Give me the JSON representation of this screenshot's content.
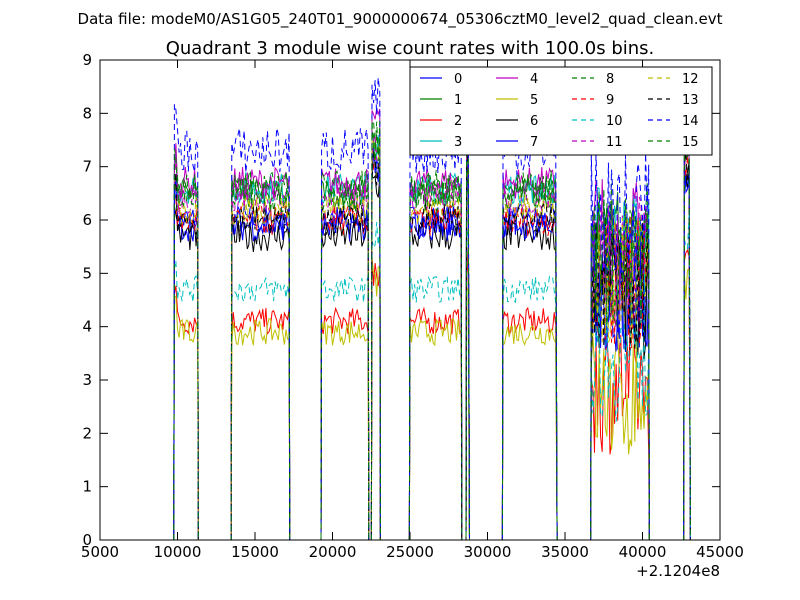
{
  "header": {
    "data_file": "Data file: modeM0/AS1G05_240T01_9000000674_05306cztM0_level2_quad_clean.evt"
  },
  "chart_data": {
    "type": "line",
    "title": "Quadrant 3 module wise count rates with 100.0s bins.",
    "xlabel": "",
    "ylabel": "",
    "x_offset_label": "+2.1204e8",
    "xlim": [
      5000,
      45000
    ],
    "ylim": [
      0,
      9
    ],
    "xticks": [
      5000,
      10000,
      15000,
      20000,
      25000,
      30000,
      35000,
      40000,
      45000
    ],
    "yticks": [
      0,
      1,
      2,
      3,
      4,
      5,
      6,
      7,
      8,
      9
    ],
    "legend_position": "top-right",
    "segments": [
      [
        9800,
        11300
      ],
      [
        13500,
        17200
      ],
      [
        19300,
        22300
      ],
      [
        22550,
        23050
      ],
      [
        25000,
        28300
      ],
      [
        28650,
        28800
      ],
      [
        31000,
        34450
      ],
      [
        36700,
        40400
      ],
      [
        42700,
        43050
      ]
    ],
    "series": [
      {
        "name": "0",
        "color": "#0000ff",
        "dash": "solid",
        "level": 6.0,
        "amplitude": 0.3
      },
      {
        "name": "1",
        "color": "#008000",
        "dash": "solid",
        "level": 6.5,
        "amplitude": 0.3
      },
      {
        "name": "2",
        "color": "#ff0000",
        "dash": "solid",
        "level": 4.1,
        "amplitude": 0.25
      },
      {
        "name": "3",
        "color": "#00bfbf",
        "dash": "solid",
        "level": 6.6,
        "amplitude": 0.3
      },
      {
        "name": "4",
        "color": "#bf00bf",
        "dash": "solid",
        "level": 6.7,
        "amplitude": 0.3
      },
      {
        "name": "5",
        "color": "#bfbf00",
        "dash": "solid",
        "level": 3.9,
        "amplitude": 0.25
      },
      {
        "name": "6",
        "color": "#000000",
        "dash": "solid",
        "level": 5.7,
        "amplitude": 0.3
      },
      {
        "name": "7",
        "color": "#0000ff",
        "dash": "solid",
        "level": 5.9,
        "amplitude": 0.3
      },
      {
        "name": "8",
        "color": "#008000",
        "dash": "dashed",
        "level": 6.6,
        "amplitude": 0.35
      },
      {
        "name": "9",
        "color": "#ff0000",
        "dash": "dashed",
        "level": 6.0,
        "amplitude": 0.3
      },
      {
        "name": "10",
        "color": "#00bfbf",
        "dash": "dashed",
        "level": 4.7,
        "amplitude": 0.25
      },
      {
        "name": "11",
        "color": "#bf00bf",
        "dash": "dashed",
        "level": 6.4,
        "amplitude": 0.3
      },
      {
        "name": "12",
        "color": "#bfbf00",
        "dash": "dashed",
        "level": 6.2,
        "amplitude": 0.3
      },
      {
        "name": "13",
        "color": "#000000",
        "dash": "dashed",
        "level": 6.0,
        "amplitude": 0.3
      },
      {
        "name": "14",
        "color": "#0000ff",
        "dash": "dashed",
        "level": 7.3,
        "amplitude": 0.45
      },
      {
        "name": "15",
        "color": "#008000",
        "dash": "dashed",
        "level": 6.5,
        "amplitude": 0.35
      }
    ]
  }
}
